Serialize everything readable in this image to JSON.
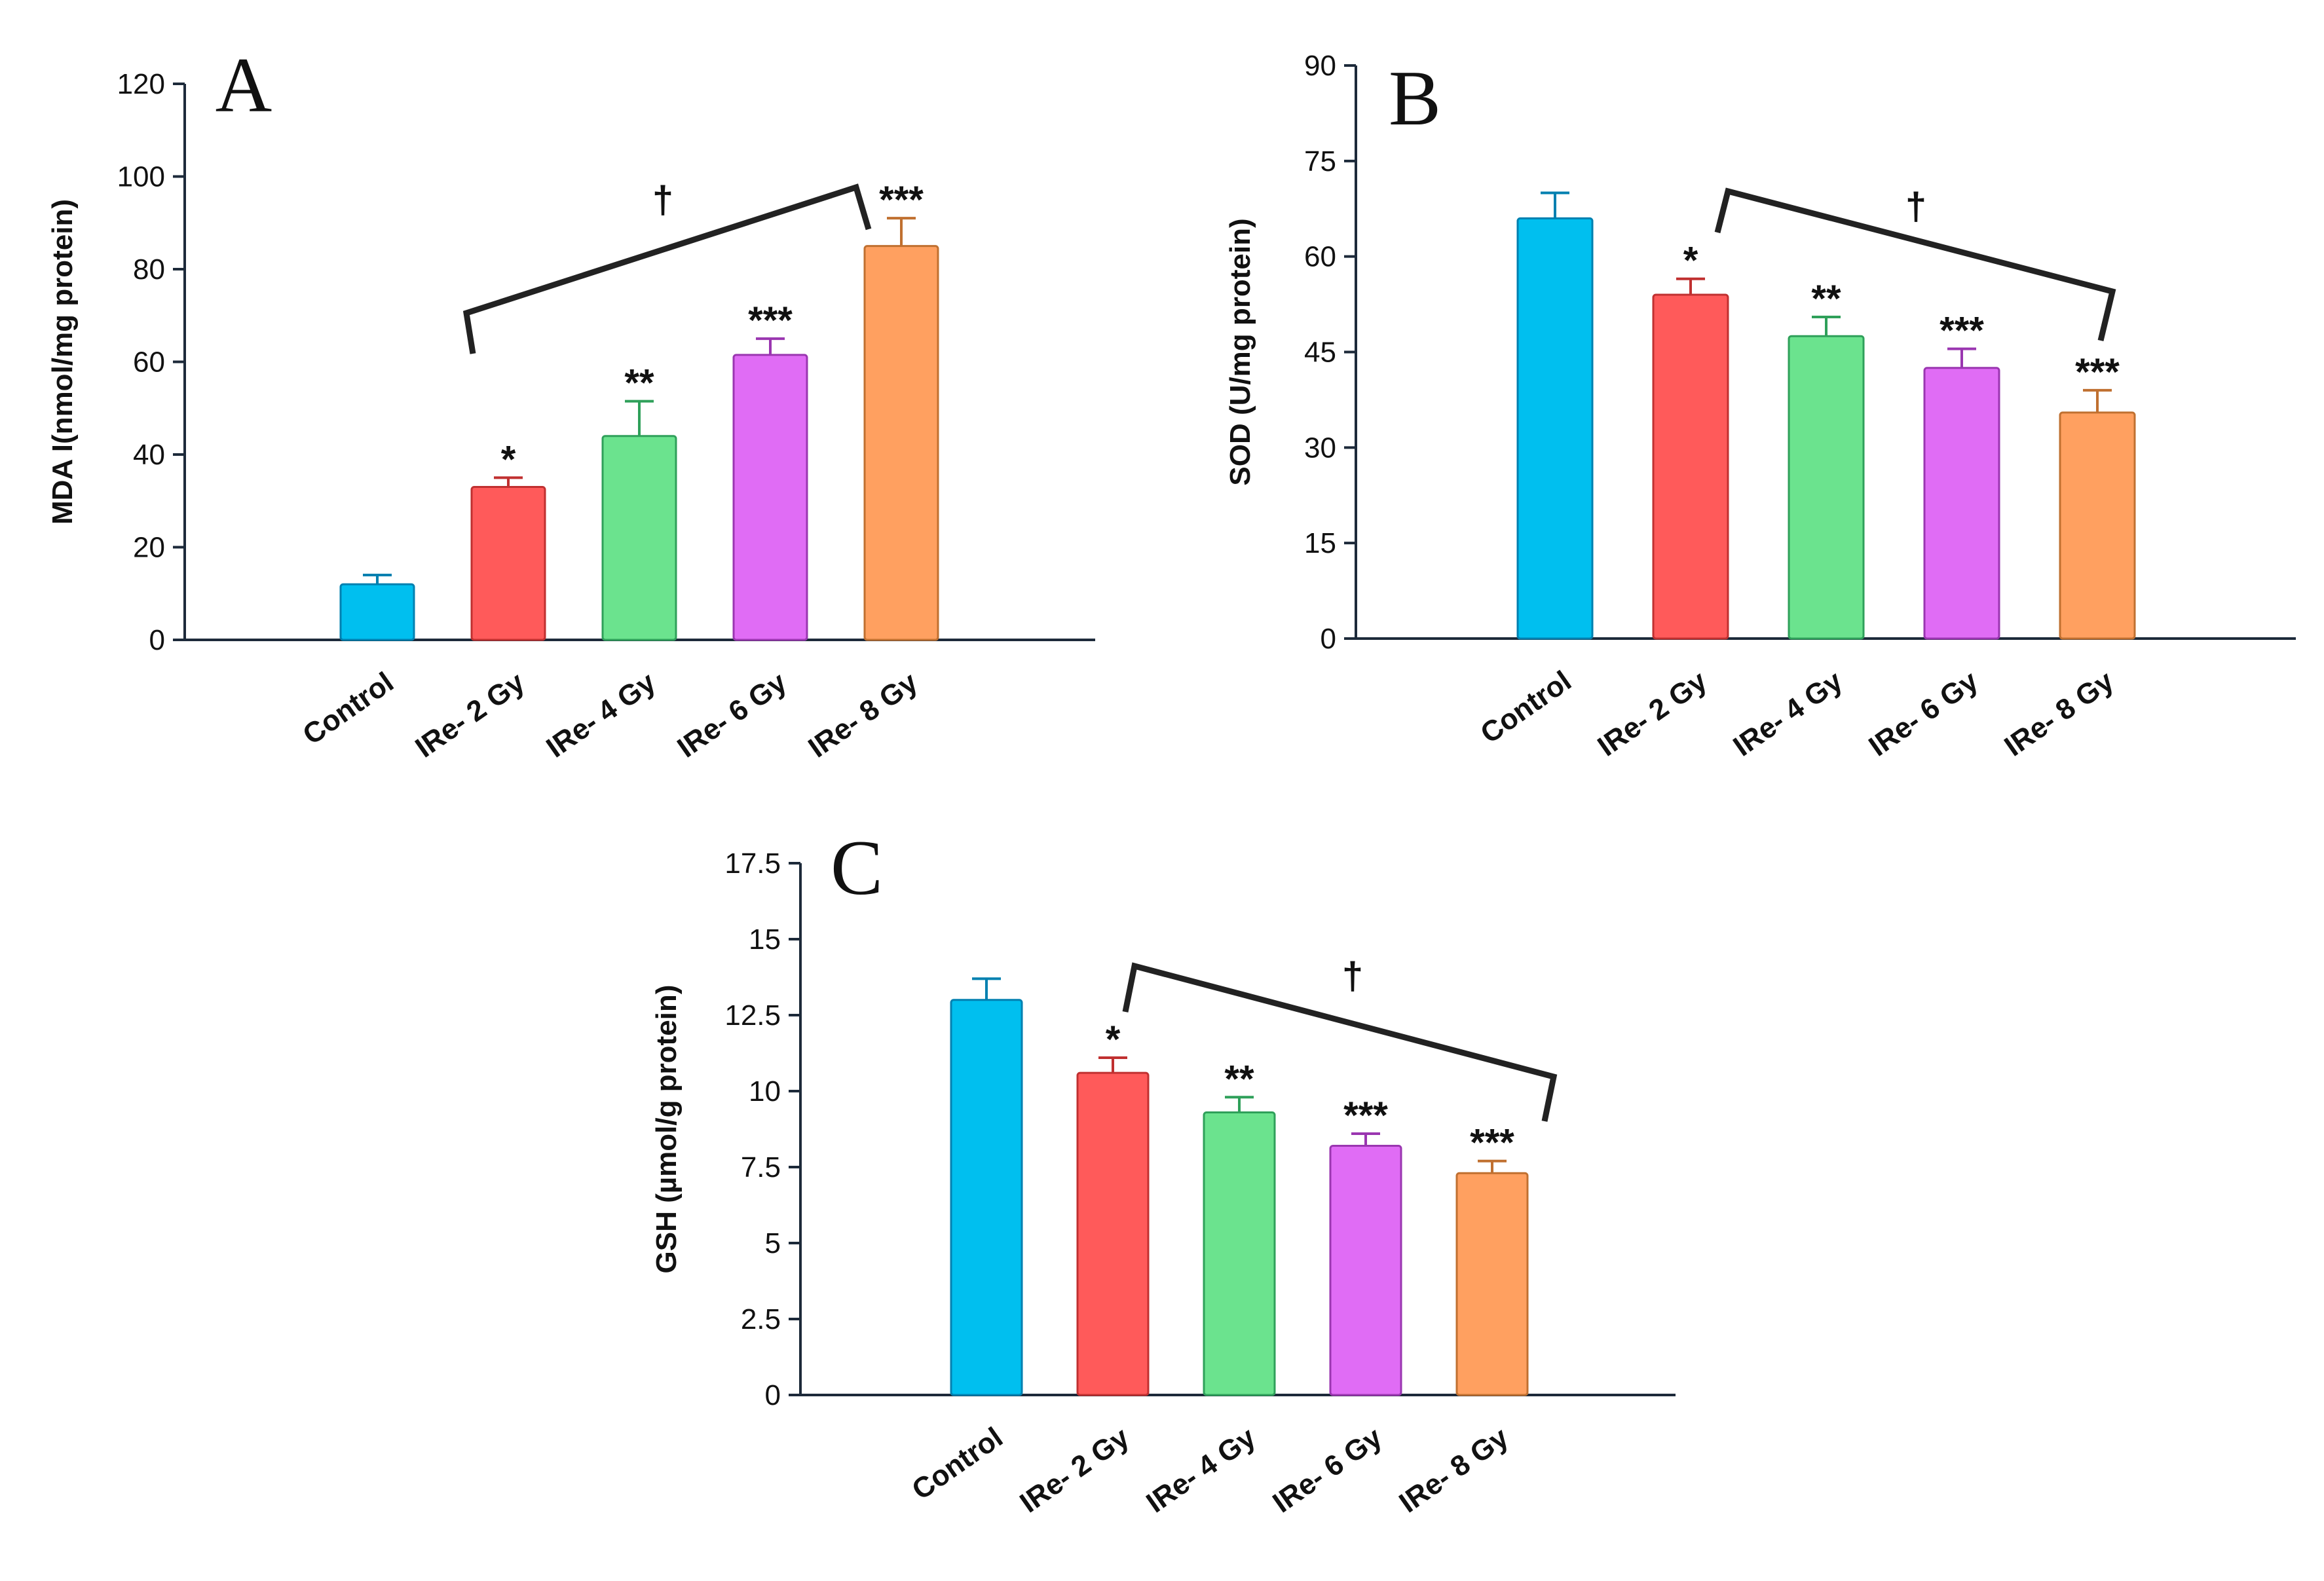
{
  "figure": {
    "colors": [
      "#00BFEF",
      "#FF5A5A",
      "#6BE38E",
      "#E06CF5",
      "#FFA060"
    ],
    "edge_colors": [
      "#0080B0",
      "#C03030",
      "#2FA05A",
      "#9A36B0",
      "#C07030"
    ]
  },
  "chart_data": [
    {
      "panel": "A",
      "type": "bar",
      "categories": [
        "Control",
        "IRe- 2 Gy",
        "IRe- 4 Gy",
        "IRe- 6 Gy",
        "IRe- 8 Gy"
      ],
      "values": [
        12,
        33,
        44,
        61.5,
        85
      ],
      "errors": [
        2,
        2,
        7.5,
        3.5,
        6
      ],
      "significance": [
        "",
        "*",
        "**",
        "***",
        "***"
      ],
      "bracket_label": "†",
      "bracket_from": 1,
      "bracket_to": 4,
      "ylabel": "MDA I(nmol/mg protein)",
      "ylim": [
        0,
        120
      ],
      "yticks": [
        "0",
        "20",
        "40",
        "60",
        "80",
        "100",
        "120"
      ],
      "title": ""
    },
    {
      "panel": "B",
      "type": "bar",
      "categories": [
        "Control",
        "IRe- 2 Gy",
        "IRe- 4 Gy",
        "IRe- 6 Gy",
        "IRe- 8 Gy"
      ],
      "values": [
        66,
        54,
        47.5,
        42.5,
        35.5
      ],
      "errors": [
        4,
        2.5,
        3,
        3,
        3.5
      ],
      "significance": [
        "",
        "*",
        "**",
        "***",
        "***"
      ],
      "bracket_label": "†",
      "bracket_from": 1,
      "bracket_to": 4,
      "ylabel": "SOD (U/mg protein)",
      "ylim": [
        0,
        90
      ],
      "yticks": [
        "0",
        "15",
        "30",
        "45",
        "60",
        "75",
        "90"
      ],
      "title": ""
    },
    {
      "panel": "C",
      "type": "bar",
      "categories": [
        "Control",
        "IRe- 2 Gy",
        "IRe- 4 Gy",
        "IRe- 6 Gy",
        "IRe- 8 Gy"
      ],
      "values": [
        13,
        10.6,
        9.3,
        8.2,
        7.3
      ],
      "errors": [
        0.7,
        0.5,
        0.5,
        0.4,
        0.4
      ],
      "significance": [
        "",
        "*",
        "**",
        "***",
        "***"
      ],
      "bracket_label": "†",
      "bracket_from": 1,
      "bracket_to": 4,
      "ylabel": "GSH (µmol/g protein)",
      "ylim": [
        0,
        17.5
      ],
      "yticks": [
        "0",
        "2.5",
        "5",
        "7.5",
        "10",
        "12.5",
        "15",
        "17.5"
      ],
      "title": ""
    }
  ]
}
